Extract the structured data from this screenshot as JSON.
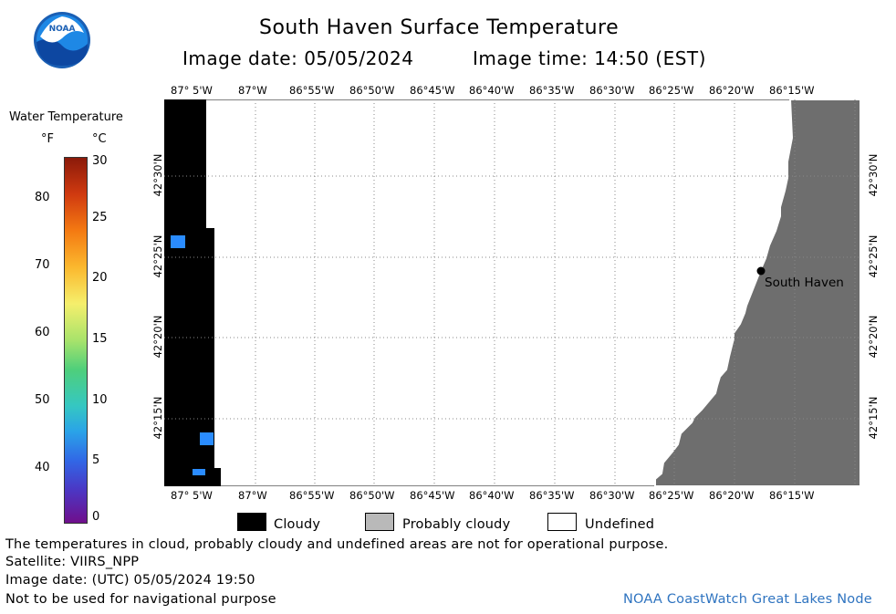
{
  "header": {
    "title": "South Haven Surface Temperature",
    "image_date_label": "Image date: 05/05/2024",
    "image_time_label": "Image time: 14:50 (EST)",
    "logo_text": "NOAA"
  },
  "color_scale": {
    "title": "Water Temperature",
    "unit_f": "°F",
    "unit_c": "°C",
    "f_ticks": [
      "80",
      "70",
      "60",
      "50",
      "40"
    ],
    "c_ticks": [
      "30",
      "25",
      "20",
      "15",
      "10",
      "5",
      "0"
    ]
  },
  "map": {
    "lon_labels": [
      "87° 5'W",
      "87°W",
      "86°55'W",
      "86°50'W",
      "86°45'W",
      "86°40'W",
      "86°35'W",
      "86°30'W",
      "86°25'W",
      "86°20'W",
      "86°15'W"
    ],
    "lat_labels": [
      "42°30'N",
      "42°25'N",
      "42°20'N",
      "42°15'N"
    ],
    "place_label": "South Haven",
    "colors": {
      "land": "#6e6e6e",
      "cloud": "#000000",
      "water_undefined": "#ffffff",
      "warm_pixel": "#2a8cff"
    }
  },
  "legend": {
    "cloudy": "Cloudy",
    "probably_cloudy": "Probably cloudy",
    "undefined": "Undefined"
  },
  "footer": {
    "line1": "The temperatures in cloud, probably cloudy and undefined areas are not for operational purpose.",
    "line2": "Satellite: VIIRS_NPP",
    "line3": "Image date: (UTC) 05/05/2024  19:50",
    "line4": "Not to be used for navigational purpose",
    "credit": "NOAA CoastWatch Great Lakes Node"
  }
}
